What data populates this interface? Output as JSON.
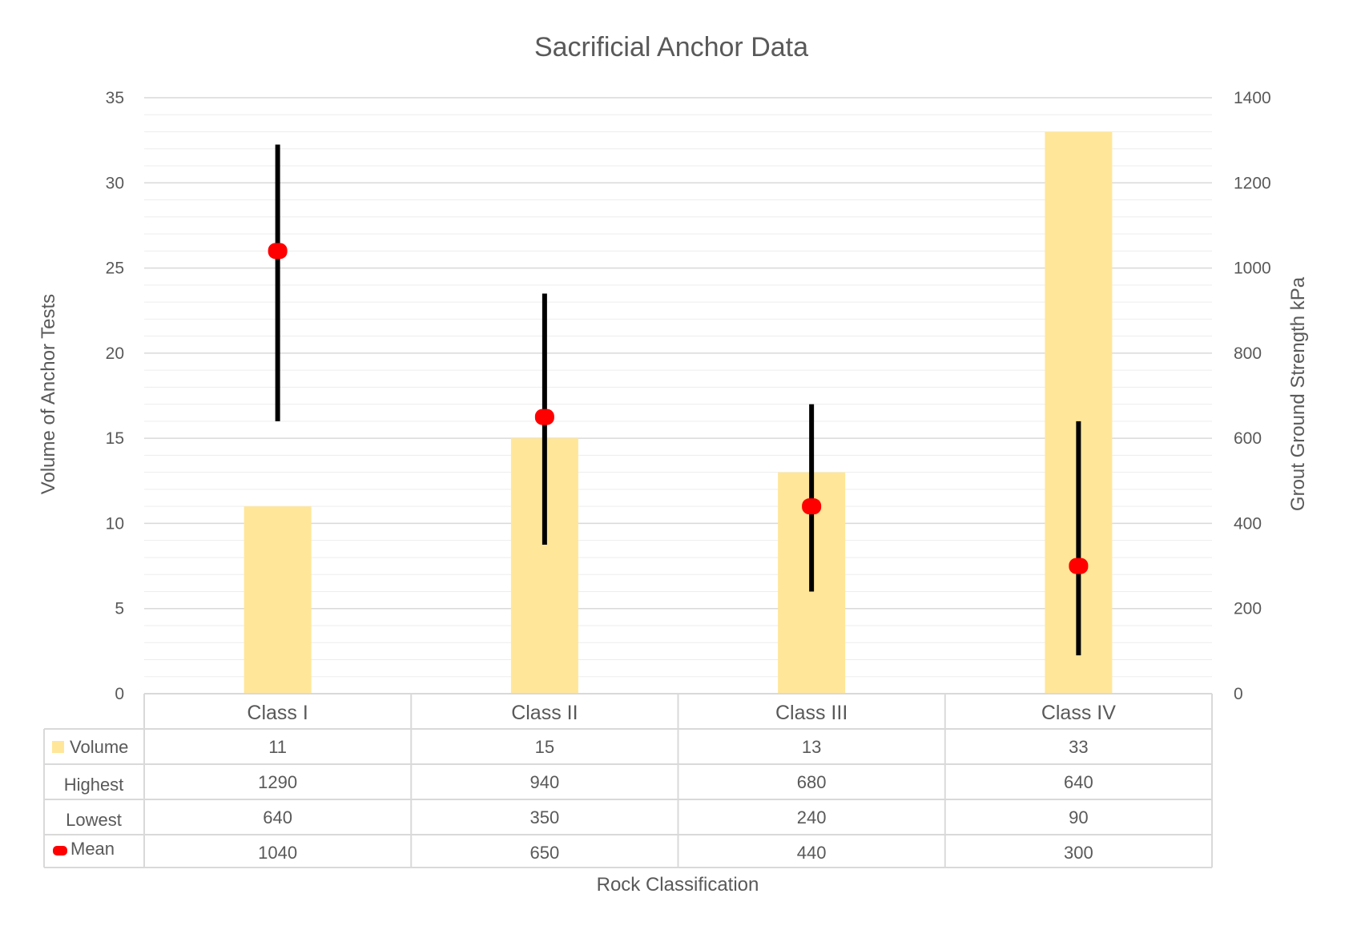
{
  "chart_data": {
    "type": "bar",
    "title": "Sacrificial Anchor Data",
    "xlabel": "Rock Classification",
    "ylabel": "Volume of Anchor Tests",
    "y2label": "Grout Ground Strength kPa",
    "ylim": [
      0,
      35
    ],
    "y2lim": [
      0,
      1400
    ],
    "yticks": [
      "0",
      "5",
      "10",
      "15",
      "20",
      "25",
      "30",
      "35"
    ],
    "y2ticks": [
      "0",
      "200",
      "400",
      "600",
      "800",
      "1000",
      "1200",
      "1400"
    ],
    "grid": true,
    "legend": "data-table",
    "categories": [
      "Class I",
      "Class II",
      "Class III",
      "Class IV"
    ],
    "series": [
      {
        "name": "Volume",
        "type": "bar",
        "axis": "left",
        "color": "#FFE699",
        "values": [
          11,
          15,
          13,
          33
        ]
      },
      {
        "name": "Highest",
        "type": "errorbar-high",
        "axis": "right",
        "color": "#000000",
        "values": [
          1290,
          940,
          680,
          640
        ]
      },
      {
        "name": "Lowest",
        "type": "errorbar-low",
        "axis": "right",
        "color": "#000000",
        "values": [
          640,
          350,
          240,
          90
        ]
      },
      {
        "name": "Mean",
        "type": "marker",
        "axis": "right",
        "color": "#FF0000",
        "values": [
          1040,
          650,
          440,
          300
        ]
      }
    ],
    "table_values": {
      "Volume": [
        "11",
        "15",
        "13",
        "33"
      ],
      "Highest": [
        "1290",
        "940",
        "680",
        "640"
      ],
      "Lowest": [
        "640",
        "350",
        "240",
        "90"
      ],
      "Mean": [
        "1040",
        "650",
        "440",
        "300"
      ]
    },
    "colors": {
      "gridline": "#D9D9D9",
      "minor_gridline": "#EDEDED",
      "table_border": "#D9D9D9",
      "text": "#595959"
    }
  }
}
